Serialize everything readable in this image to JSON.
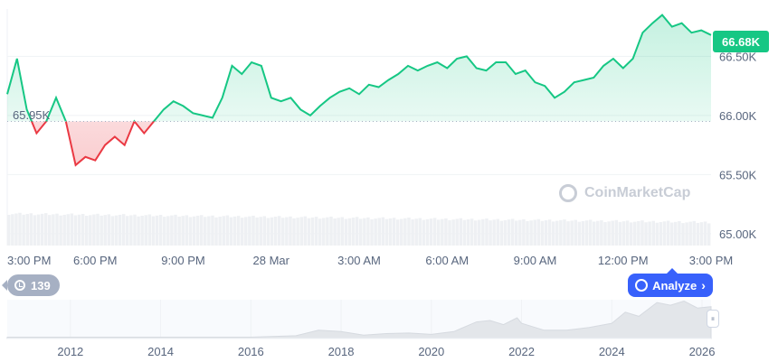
{
  "chart_data": [
    {
      "type": "line",
      "title": "",
      "series": [
        {
          "x": [
            "15:00",
            "15:20",
            "15:40",
            "16:00",
            "16:20",
            "16:40",
            "17:00",
            "17:20",
            "17:40",
            "18:00",
            "18:20",
            "18:40",
            "19:00",
            "19:20",
            "19:40",
            "20:00",
            "20:20",
            "20:40",
            "21:00",
            "21:20",
            "21:40",
            "22:00",
            "22:20",
            "22:40",
            "23:00",
            "23:20",
            "23:40",
            "00:00",
            "00:20",
            "00:40",
            "01:00",
            "01:20",
            "01:40",
            "02:00",
            "02:20",
            "02:40",
            "03:00",
            "03:20",
            "03:40",
            "04:00",
            "04:20",
            "04:40",
            "05:00",
            "05:20",
            "05:40",
            "06:00",
            "06:20",
            "06:40",
            "07:00",
            "07:20",
            "07:40",
            "08:00",
            "08:20",
            "08:40",
            "09:00",
            "09:20",
            "09:40",
            "10:00",
            "10:20",
            "10:40",
            "11:00",
            "11:20",
            "11:40",
            "12:00",
            "12:20",
            "12:40",
            "13:00",
            "13:20",
            "13:40",
            "14:00",
            "14:20",
            "14:40",
            "15:00"
          ],
          "values": [
            66180,
            66480,
            66050,
            65850,
            65950,
            66150,
            65950,
            65580,
            65650,
            65620,
            65750,
            65820,
            65750,
            65950,
            65850,
            65950,
            66050,
            66120,
            66080,
            66020,
            66000,
            65980,
            66150,
            66420,
            66350,
            66450,
            66420,
            66150,
            66120,
            66150,
            66050,
            66000,
            66080,
            66150,
            66200,
            66230,
            66180,
            66260,
            66240,
            66300,
            66350,
            66420,
            66380,
            66420,
            66450,
            66400,
            66480,
            66500,
            66400,
            66380,
            66450,
            66450,
            66350,
            66380,
            66280,
            66250,
            66150,
            66200,
            66280,
            66300,
            66320,
            66420,
            66480,
            66400,
            66480,
            66700,
            66780,
            66850,
            66750,
            66780,
            66700,
            66720,
            66680
          ]
        }
      ],
      "yticks": [
        "65.00K",
        "65.50K",
        "66.00K",
        "66.50K"
      ],
      "xticks": [
        "3:00 PM",
        "6:00 PM",
        "9:00 PM",
        "28 Mar",
        "3:00 AM",
        "6:00 AM",
        "9:00 AM",
        "12:00 PM",
        "3:00 PM"
      ],
      "ylim": [
        64900,
        66900
      ],
      "reference": 65950,
      "reference_label": "65.95K",
      "current_price_label": "66.68K",
      "colors": {
        "up": "#16c784",
        "down": "#ea3943"
      },
      "grid": true
    },
    {
      "type": "area",
      "x": [
        2010.6,
        2011,
        2012,
        2013,
        2014,
        2015,
        2016,
        2017,
        2017.5,
        2018,
        2018.5,
        2019,
        2019.5,
        2020,
        2020.5,
        2021,
        2021.3,
        2021.6,
        2021.9,
        2022,
        2022.5,
        2023,
        2023.5,
        2024,
        2024.3,
        2024.6,
        2025,
        2025.3,
        2025.6,
        2025.9,
        2026.2
      ],
      "values": [
        0.05,
        0.05,
        0.05,
        0.05,
        0.05,
        0.05,
        0.05,
        0.1,
        0.3,
        0.25,
        0.12,
        0.18,
        0.2,
        0.15,
        0.25,
        0.6,
        0.65,
        0.5,
        0.75,
        0.55,
        0.3,
        0.3,
        0.4,
        0.55,
        0.95,
        0.8,
        1.3,
        1.2,
        1.35,
        1.1,
        1.15
      ],
      "xticks": [
        "2012",
        "2014",
        "2016",
        "2018",
        "2020",
        "2022",
        "2024",
        "2026"
      ]
    }
  ],
  "ui": {
    "badge_count": "139",
    "analyze_label": "Analyze",
    "watermark": "CoinMarketCap"
  }
}
